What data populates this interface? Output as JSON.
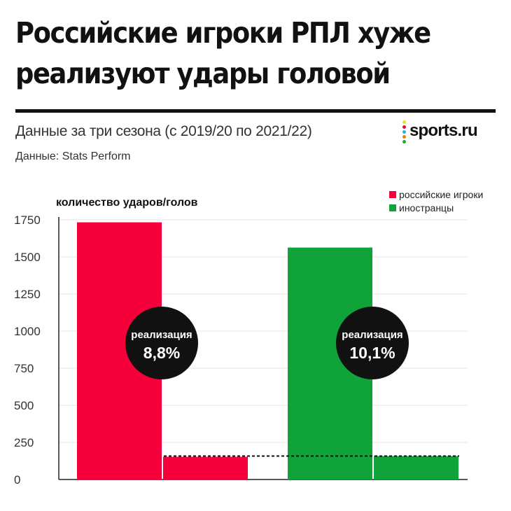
{
  "title": "Российские игроки РПЛ хуже реализуют удары головой",
  "subtitle": "Данные за три сезона (с 2019/20 по 2021/22)",
  "source": "Данные: Stats Perform",
  "brand": "sports.ru",
  "colors": {
    "russian": "#f5003b",
    "foreign": "#0fa33a",
    "badge": "#111111",
    "axis": "#222222",
    "grid": "#e6e6e6",
    "brand_dots": [
      "#e8e020",
      "#f0004a",
      "#1fb3e0",
      "#f07c00",
      "#22a83a"
    ]
  },
  "chart_data": {
    "type": "bar",
    "ylabel": "количество ударов/голов",
    "ylim": [
      0,
      1750
    ],
    "yticks": [
      {
        "value": 0,
        "label": "0"
      },
      {
        "value": 250,
        "label": "250"
      },
      {
        "value": 500,
        "label": "500"
      },
      {
        "value": 750,
        "label": "750"
      },
      {
        "value": 1000,
        "label": "1000"
      },
      {
        "value": 1250,
        "label": "1250"
      },
      {
        "value": 1500,
        "label": "1500"
      },
      {
        "value": 1750,
        "label": "1750"
      }
    ],
    "legend": [
      {
        "label": "российские игроки",
        "color": "#f5003b"
      },
      {
        "label": "иностранцы",
        "color": "#0fa33a"
      }
    ],
    "legend_position": "top-right",
    "groups": [
      {
        "series": "российские игроки",
        "color": "#f5003b",
        "shots": 1733,
        "goals": 153,
        "badge_label": "реализация",
        "badge_value": "8,8%"
      },
      {
        "series": "иностранцы",
        "color": "#0fa33a",
        "shots": 1563,
        "goals": 158,
        "badge_label": "реализация",
        "badge_value": "10,1%"
      }
    ],
    "reference_line": 158,
    "grid": true
  }
}
